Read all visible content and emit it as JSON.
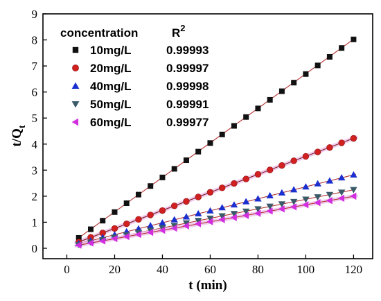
{
  "chart_data": {
    "type": "scatter",
    "xlabel": "t (min)",
    "ylabel_main": "t/Q",
    "ylabel_sub": "t",
    "xlim": [
      -10,
      128
    ],
    "ylim": [
      -0.4,
      9
    ],
    "xticks": [
      0,
      20,
      40,
      60,
      80,
      100,
      120
    ],
    "yticks": [
      0,
      1,
      2,
      3,
      4,
      5,
      6,
      7,
      8,
      9
    ],
    "legend_header": {
      "left": "concentration",
      "right_main": "R",
      "right_sup": "2"
    },
    "legend_placement": "top-left",
    "x": [
      5,
      10,
      15,
      20,
      25,
      30,
      35,
      40,
      45,
      50,
      55,
      60,
      65,
      70,
      75,
      80,
      85,
      90,
      95,
      100,
      105,
      110,
      115,
      120
    ],
    "series": [
      {
        "name": "10mg/L",
        "r2": "0.99993",
        "marker": "square",
        "color": "#111111",
        "line_color": "#b03030",
        "fit": [
          0.07,
          0.0663
        ],
        "values": [
          0.4,
          0.73,
          1.06,
          1.39,
          1.73,
          2.06,
          2.39,
          2.72,
          3.05,
          3.38,
          3.71,
          4.04,
          4.37,
          4.7,
          5.04,
          5.37,
          5.7,
          6.03,
          6.36,
          6.69,
          7.02,
          7.35,
          7.69,
          8.02
        ]
      },
      {
        "name": "20mg/L",
        "r2": "0.99997",
        "marker": "circle",
        "color": "#d02020",
        "line_color": "#7a1a1a",
        "fit": [
          0.07,
          0.0346
        ],
        "values": [
          0.24,
          0.42,
          0.59,
          0.76,
          0.94,
          1.11,
          1.28,
          1.45,
          1.63,
          1.8,
          1.97,
          2.15,
          2.32,
          2.49,
          2.66,
          2.84,
          3.01,
          3.18,
          3.36,
          3.53,
          3.7,
          3.87,
          4.05,
          4.22
        ]
      },
      {
        "name": "40mg/L",
        "r2": "0.99998",
        "marker": "triangle-up",
        "color": "#1a2fd0",
        "line_color": "#b03030",
        "fit": [
          0.06,
          0.023
        ],
        "values": [
          0.18,
          0.29,
          0.41,
          0.52,
          0.64,
          0.75,
          0.87,
          0.98,
          1.1,
          1.21,
          1.33,
          1.44,
          1.56,
          1.67,
          1.79,
          1.9,
          2.02,
          2.13,
          2.25,
          2.36,
          2.48,
          2.59,
          2.71,
          2.82
        ]
      },
      {
        "name": "50mg/L",
        "r2": "0.99991",
        "marker": "triangle-down",
        "color": "#3a5a6a",
        "line_color": "#b03030",
        "fit": [
          0.05,
          0.0183
        ],
        "values": [
          0.14,
          0.23,
          0.32,
          0.42,
          0.51,
          0.6,
          0.69,
          0.78,
          0.87,
          0.97,
          1.06,
          1.15,
          1.24,
          1.33,
          1.42,
          1.51,
          1.61,
          1.7,
          1.79,
          1.88,
          1.97,
          2.06,
          2.15,
          2.25
        ]
      },
      {
        "name": "60mg/L",
        "r2": "0.99977",
        "marker": "triangle-left",
        "color": "#d22ee0",
        "line_color": "#b03030",
        "fit": [
          0.04,
          0.0163
        ],
        "values": [
          0.12,
          0.2,
          0.28,
          0.37,
          0.45,
          0.53,
          0.61,
          0.69,
          0.77,
          0.86,
          0.94,
          1.02,
          1.1,
          1.18,
          1.26,
          1.34,
          1.43,
          1.51,
          1.59,
          1.67,
          1.75,
          1.83,
          1.92,
          2.0
        ]
      }
    ]
  }
}
